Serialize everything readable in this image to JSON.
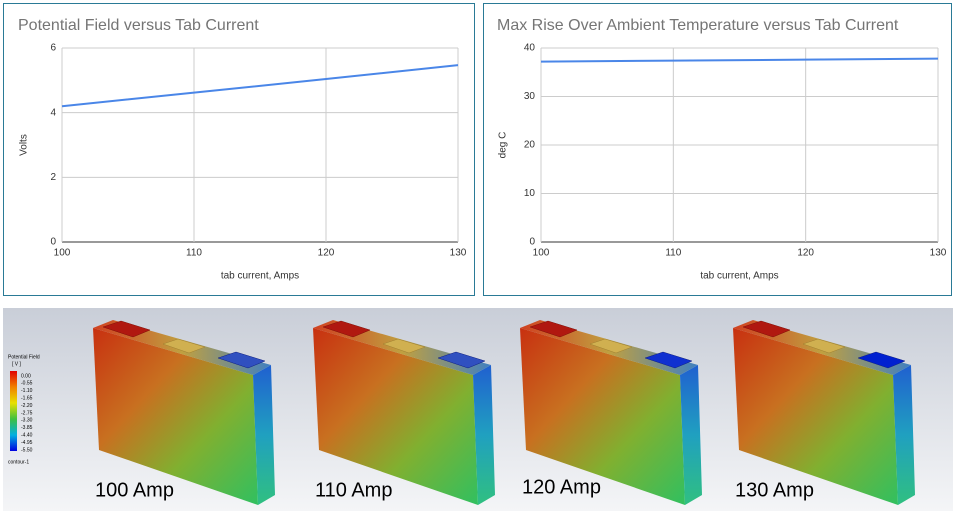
{
  "chart_data": [
    {
      "type": "line",
      "title": "Potential Field versus Tab Current",
      "x_label": "tab current, Amps",
      "y_label": "Volts",
      "x": [
        100,
        110,
        120,
        130
      ],
      "series": [
        {
          "color": "#4a86e8",
          "values": [
            4.2,
            4.62,
            5.04,
            5.47
          ]
        }
      ],
      "xlim": [
        100,
        130
      ],
      "xticks": [
        100,
        110,
        120,
        130
      ],
      "ylim": [
        0,
        6
      ],
      "yticks": [
        0,
        2,
        4,
        6
      ],
      "grid": true
    },
    {
      "type": "line",
      "title": "Max Rise Over Ambient Temperature versus Tab Current",
      "x_label": "tab current, Amps",
      "y_label": "deg C",
      "x": [
        100,
        110,
        120,
        130
      ],
      "series": [
        {
          "color": "#4a86e8",
          "values": [
            37.2,
            37.4,
            37.6,
            37.8
          ]
        }
      ],
      "xlim": [
        100,
        130
      ],
      "xticks": [
        100,
        110,
        120,
        130
      ],
      "ylim": [
        0,
        40
      ],
      "yticks": [
        0,
        10,
        20,
        30,
        40
      ],
      "grid": true
    }
  ],
  "contour_panel": {
    "legend": {
      "title": "Potential Field",
      "unit": "[ V ]",
      "levels": [
        "0.00",
        "-0.55",
        "-1.10",
        "-1.65",
        "-2.20",
        "-2.75",
        "-3.30",
        "-3.85",
        "-4.40",
        "-4.95",
        "-5.50"
      ],
      "name": "contour-1"
    },
    "labels": [
      "100 Amp",
      "110 Amp",
      "120 Amp",
      "130 Amp"
    ]
  }
}
